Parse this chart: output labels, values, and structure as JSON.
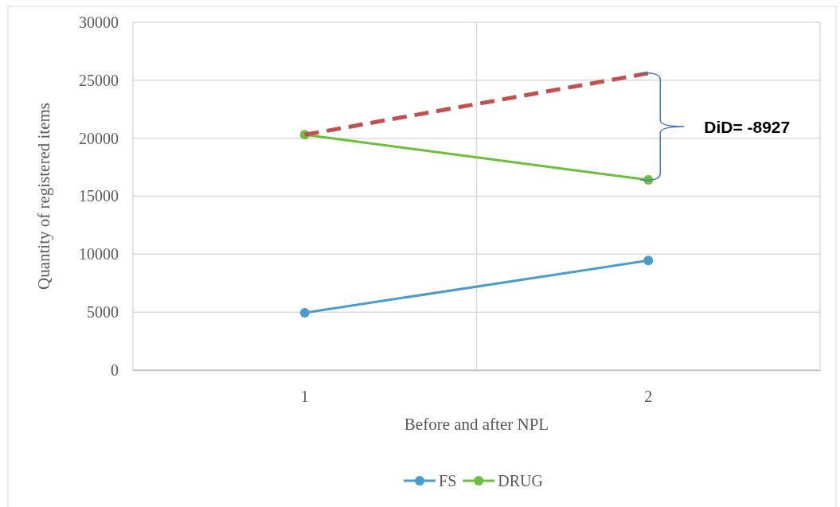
{
  "chart_data": {
    "type": "line",
    "xlabel": "Before and after NPL",
    "ylabel": "Quantity of registered items",
    "categories": [
      "1",
      "2"
    ],
    "series": [
      {
        "name": "FS",
        "color": "#4a9ccc",
        "values": [
          4950,
          9450
        ],
        "marker": "circle",
        "line_style": "solid"
      },
      {
        "name": "DRUG",
        "color": "#6cbf3a",
        "values": [
          20300,
          16400
        ],
        "marker": "circle",
        "line_style": "solid"
      },
      {
        "color": "#c0504d",
        "values": [
          20300,
          25600
        ],
        "marker": "none",
        "line_style": "dashed"
      }
    ],
    "ylim": [
      0,
      30000
    ],
    "yticks": [
      0,
      5000,
      10000,
      15000,
      20000,
      25000,
      30000
    ],
    "grid": true,
    "legend": "bottom",
    "annotations": [
      "DiD= -8927"
    ]
  }
}
